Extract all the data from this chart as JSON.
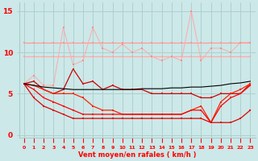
{
  "x": [
    0,
    1,
    2,
    3,
    4,
    5,
    6,
    7,
    8,
    9,
    10,
    11,
    12,
    13,
    14,
    15,
    16,
    17,
    18,
    19,
    20,
    21,
    22,
    23
  ],
  "line_flat1": [
    11.2,
    11.2,
    11.2,
    11.2,
    11.2,
    11.2,
    11.2,
    11.2,
    11.2,
    11.2,
    11.2,
    11.2,
    11.2,
    11.2,
    11.2,
    11.2,
    11.2,
    11.2,
    11.2,
    11.2,
    11.2,
    11.2,
    11.2,
    11.2
  ],
  "line_flat2": [
    9.5,
    9.5,
    9.5,
    9.5,
    9.5,
    9.5,
    9.5,
    9.5,
    9.5,
    9.5,
    9.5,
    9.5,
    9.5,
    9.5,
    9.5,
    9.5,
    9.5,
    9.5,
    9.5,
    9.5,
    9.5,
    9.5,
    9.5,
    9.5
  ],
  "line_jagged": [
    6.2,
    7.2,
    6.0,
    6.0,
    13.0,
    8.5,
    9.0,
    13.0,
    10.5,
    10.0,
    11.0,
    10.0,
    10.5,
    9.5,
    9.0,
    9.5,
    9.0,
    15.0,
    9.0,
    10.5,
    10.5,
    10.0,
    11.2,
    11.2
  ],
  "line_dark1": [
    6.2,
    6.5,
    5.5,
    5.0,
    5.5,
    8.0,
    6.2,
    6.5,
    5.5,
    6.0,
    5.5,
    5.5,
    5.5,
    5.0,
    5.0,
    5.0,
    5.0,
    5.0,
    4.5,
    4.5,
    5.0,
    5.0,
    5.0,
    6.2
  ],
  "line_slope1": [
    6.2,
    6.0,
    5.5,
    5.0,
    5.0,
    5.0,
    4.5,
    3.5,
    3.0,
    3.0,
    2.5,
    2.5,
    2.5,
    2.5,
    2.5,
    2.5,
    2.5,
    3.0,
    3.5,
    1.5,
    4.0,
    5.0,
    5.5,
    6.2
  ],
  "line_slope2": [
    6.2,
    5.5,
    4.5,
    4.0,
    3.5,
    3.0,
    2.5,
    2.5,
    2.5,
    2.5,
    2.5,
    2.5,
    2.5,
    2.5,
    2.5,
    2.5,
    2.5,
    3.0,
    3.0,
    1.5,
    3.5,
    4.5,
    5.0,
    6.0
  ],
  "line_slope3": [
    6.2,
    4.5,
    3.5,
    3.0,
    2.5,
    2.0,
    2.0,
    2.0,
    2.0,
    2.0,
    2.0,
    2.0,
    2.0,
    2.0,
    2.0,
    2.0,
    2.0,
    2.0,
    2.0,
    1.5,
    1.5,
    1.5,
    2.0,
    3.0
  ],
  "line_black": [
    6.2,
    6.0,
    5.8,
    5.7,
    5.6,
    5.5,
    5.5,
    5.5,
    5.5,
    5.5,
    5.5,
    5.5,
    5.6,
    5.6,
    5.6,
    5.7,
    5.7,
    5.8,
    5.8,
    5.9,
    6.0,
    6.2,
    6.3,
    6.5
  ],
  "bg_color": "#cce8e8",
  "grid_color": "#aacccc",
  "xlabel": "Vent moyen/en rafales ( km/h )",
  "yticks": [
    0,
    5,
    10,
    15
  ],
  "xlim": [
    0,
    23
  ],
  "ylim": [
    0,
    16
  ]
}
